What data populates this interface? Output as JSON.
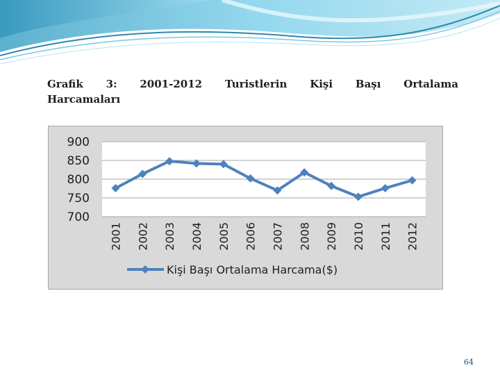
{
  "caption": {
    "line1_words": [
      "Grafik",
      "3:",
      "2001-2012",
      "Turistlerin",
      "Kişi",
      "Başı",
      "Ortalama"
    ],
    "line2": "Harcamaları"
  },
  "page_number": "64",
  "colors": {
    "line": "#4f81bd",
    "plot_background": "#ffffff",
    "chart_background": "#d9d9d9",
    "banner": "#5bb6d7"
  },
  "chart_data": {
    "type": "line",
    "categories": [
      "2001",
      "2002",
      "2003",
      "2004",
      "2005",
      "2006",
      "2007",
      "2008",
      "2009",
      "2010",
      "2011",
      "2012"
    ],
    "series": [
      {
        "name": "Kişi Başı Ortalama Harcama($)",
        "values": [
          776,
          814,
          848,
          842,
          840,
          802,
          770,
          818,
          782,
          753,
          776,
          797
        ]
      }
    ],
    "yticks": [
      "900",
      "850",
      "800",
      "750",
      "700"
    ],
    "ylim": [
      700,
      900
    ],
    "grid": true,
    "legend_position": "bottom",
    "marker": "diamond"
  }
}
